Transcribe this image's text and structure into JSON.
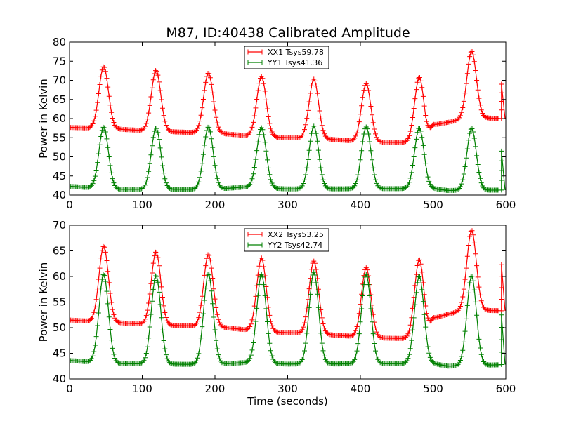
{
  "page": {
    "title": "M87, ID:40438 Calibrated Amplitude"
  },
  "chart_data": [
    {
      "type": "line",
      "title": "M87, ID:40438 Calibrated Amplitude",
      "xlabel": "",
      "ylabel": "Power in Kelvin",
      "xlim": [
        0,
        600
      ],
      "ylim": [
        40,
        80
      ],
      "xticks": [
        "0",
        "100",
        "200",
        "300",
        "400",
        "500",
        "600"
      ],
      "yticks": [
        "40",
        "45",
        "50",
        "55",
        "60",
        "65",
        "70",
        "75",
        "80"
      ],
      "legend_position": "top-center",
      "grid": false,
      "series": [
        {
          "name": "XX1 Tsys59.78",
          "color": "#ff0000",
          "baselines": [
            [
              0,
              57.7
            ],
            [
              60,
              57.3
            ],
            [
              130,
              56.6
            ],
            [
              200,
              56.2
            ],
            [
              270,
              55.2
            ],
            [
              340,
              54.8
            ],
            [
              420,
              53.8
            ],
            [
              490,
              53.7
            ],
            [
              500,
              58.3
            ],
            [
              520,
              59
            ],
            [
              545,
              60
            ],
            [
              560,
              60.2
            ],
            [
              600,
              60
            ]
          ],
          "peaks": [
            [
              47,
              73.6
            ],
            [
              119,
              72.6
            ],
            [
              191,
              71.9
            ],
            [
              264,
              71
            ],
            [
              336,
              70.3
            ],
            [
              408,
              69.1
            ],
            [
              481,
              70.8
            ],
            [
              553,
              77.6
            ]
          ],
          "spike": {
            "x": 594,
            "base": 60,
            "top": 69
          }
        },
        {
          "name": "YY1 Tsys41.36",
          "color": "#008000",
          "baselines": [
            [
              0,
              42.3
            ],
            [
              60,
              41.5
            ],
            [
              200,
              41.5
            ],
            [
              240,
              42.1
            ],
            [
              300,
              41.6
            ],
            [
              500,
              41.7
            ],
            [
              520,
              41.2
            ],
            [
              600,
              41.3
            ]
          ],
          "peaks": [
            [
              47,
              57.8
            ],
            [
              119,
              57.6
            ],
            [
              191,
              57.8
            ],
            [
              264,
              57.6
            ],
            [
              336,
              58
            ],
            [
              408,
              57.8
            ],
            [
              481,
              57.6
            ],
            [
              553,
              57.4
            ]
          ],
          "spike": {
            "x": 594,
            "base": 41.3,
            "top": 51.5
          }
        }
      ]
    },
    {
      "type": "line",
      "title": "",
      "xlabel": "Time (seconds)",
      "ylabel": "Power in Kelvin",
      "xlim": [
        0,
        600
      ],
      "ylim": [
        40,
        70
      ],
      "xticks": [
        "0",
        "100",
        "200",
        "300",
        "400",
        "500",
        "600"
      ],
      "yticks": [
        "40",
        "45",
        "50",
        "55",
        "60",
        "65",
        "70"
      ],
      "legend_position": "top-center",
      "grid": false,
      "series": [
        {
          "name": "XX2 Tsys53.25",
          "color": "#ff0000",
          "baselines": [
            [
              0,
              51.5
            ],
            [
              60,
              51
            ],
            [
              130,
              50.5
            ],
            [
              200,
              50.2
            ],
            [
              270,
              49.2
            ],
            [
              340,
              48.8
            ],
            [
              420,
              48
            ],
            [
              490,
              47.8
            ],
            [
              500,
              51.8
            ],
            [
              520,
              52.6
            ],
            [
              545,
              53.5
            ],
            [
              560,
              53.4
            ],
            [
              600,
              53.3
            ]
          ],
          "peaks": [
            [
              47,
              65.9
            ],
            [
              119,
              64.8
            ],
            [
              191,
              64.3
            ],
            [
              264,
              63.6
            ],
            [
              336,
              63
            ],
            [
              408,
              61.7
            ],
            [
              481,
              63.3
            ],
            [
              553,
              69
            ]
          ],
          "spike": {
            "x": 594,
            "base": 53.3,
            "top": 62.3
          }
        },
        {
          "name": "YY2 Tsys42.74",
          "color": "#008000",
          "baselines": [
            [
              0,
              43.6
            ],
            [
              60,
              43
            ],
            [
              200,
              42.8
            ],
            [
              240,
              43.2
            ],
            [
              300,
              42.9
            ],
            [
              500,
              43
            ],
            [
              520,
              42.5
            ],
            [
              600,
              42.8
            ]
          ],
          "peaks": [
            [
              47,
              60.4
            ],
            [
              119,
              60.2
            ],
            [
              191,
              60.5
            ],
            [
              264,
              60.4
            ],
            [
              336,
              60.8
            ],
            [
              408,
              60.4
            ],
            [
              481,
              60.1
            ],
            [
              553,
              60.1
            ]
          ],
          "spike": {
            "x": 594,
            "base": 42.8,
            "top": 52.5
          }
        }
      ]
    }
  ]
}
